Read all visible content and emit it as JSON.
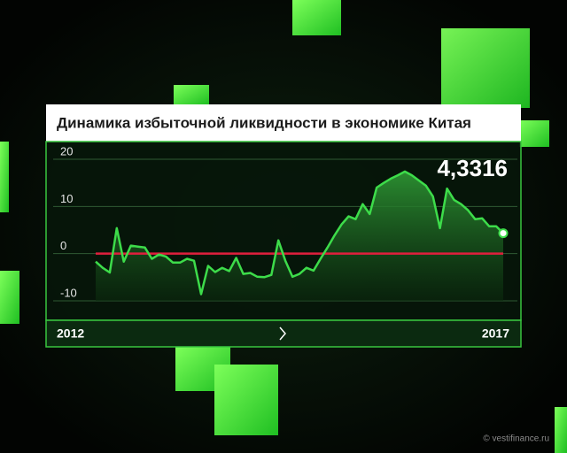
{
  "chart_data": {
    "type": "area",
    "title": "Динамика избыточной ликвидности в экономике Китая",
    "categories": [
      "2012",
      null,
      null,
      null,
      null,
      null,
      null,
      null,
      null,
      null,
      null,
      null,
      null,
      null,
      null,
      null,
      null,
      null,
      null,
      null,
      null,
      null,
      null,
      null,
      null,
      null,
      null,
      null,
      null,
      null,
      null,
      null,
      null,
      null,
      null,
      null,
      null,
      null,
      null,
      null,
      null,
      null,
      null,
      null,
      null,
      null,
      null,
      null,
      null,
      null,
      null,
      null,
      null,
      null,
      null,
      null,
      null,
      null,
      "2017"
    ],
    "values": [
      -1.7,
      -3,
      -4,
      5.4,
      -1.7,
      1.7,
      1.5,
      1.3,
      -1.1,
      -0.2,
      -0.6,
      -1.9,
      -1.9,
      -1.1,
      -1.5,
      -8.6,
      -2.6,
      -3.9,
      -3,
      -3.7,
      -0.9,
      -4.3,
      -4.1,
      -4.9,
      -5,
      -4.5,
      2.8,
      -1.5,
      -4.9,
      -4.3,
      -3,
      -3.6,
      -1.1,
      1.3,
      3.9,
      6.2,
      7.9,
      7.3,
      10.5,
      8.4,
      14,
      15,
      15.9,
      16.6,
      17.4,
      16.6,
      15.5,
      14.4,
      12.1,
      5.4,
      13.8,
      11.4,
      10.5,
      9.2,
      7.3,
      7.5,
      5.8,
      5.8,
      4.3316
    ],
    "value_label": "4,3316",
    "color": "#3ddc4a",
    "zero_line_color": "#e01f3d",
    "ylim": [
      -10,
      20
    ],
    "yticks": [
      -10,
      0,
      10,
      20
    ],
    "grid": true,
    "source": "© vestifinance.ru"
  }
}
